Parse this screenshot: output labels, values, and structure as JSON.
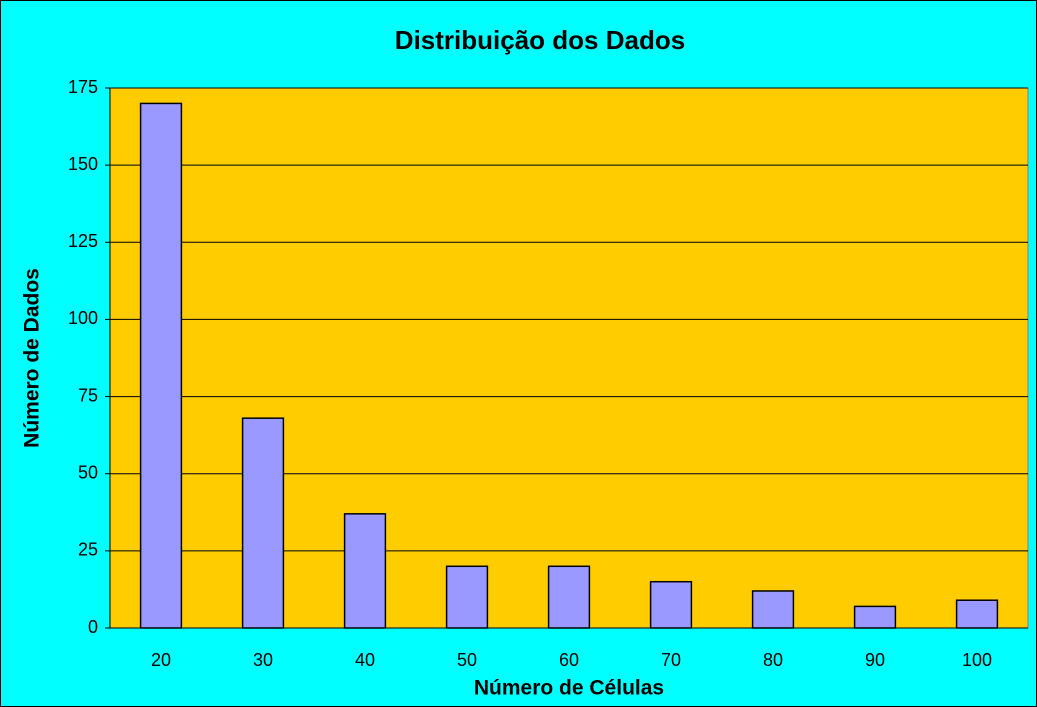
{
  "chart_data": {
    "type": "bar",
    "title": "Distribuição dos Dados",
    "x_label": "Número de Células",
    "y_label": "Número de Dados",
    "categories": [
      "20",
      "30",
      "40",
      "50",
      "60",
      "70",
      "80",
      "90",
      "100"
    ],
    "values": [
      170,
      68,
      37,
      20,
      20,
      15,
      12,
      7,
      9
    ],
    "color": "#9999ff",
    "ylim": [
      0,
      175
    ],
    "yticks": [
      0,
      25,
      50,
      75,
      100,
      125,
      150,
      175
    ],
    "grid": true
  }
}
